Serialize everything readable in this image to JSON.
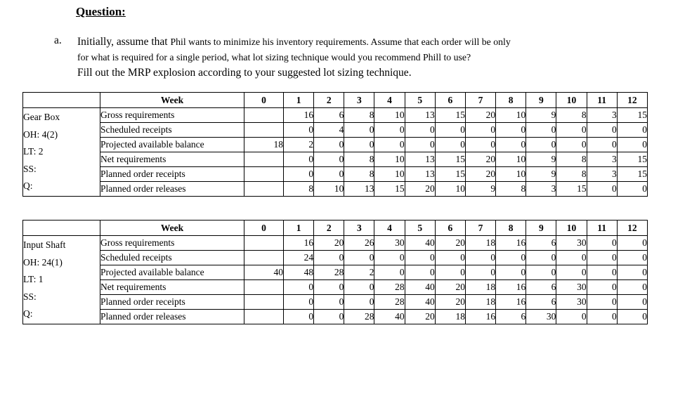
{
  "document": {
    "title": "Question:",
    "item": {
      "marker": "a.",
      "line1_lead": "Initially, assume that ",
      "line1_rest": "Phil wants to minimize his inventory requirements. Assume that each order will be only",
      "line2": "for what is required for a single period, what lot sizing technique would you recommend Phill to use?",
      "line3": "Fill out the MRP explosion according to your suggested lot sizing technique."
    }
  },
  "tables": [
    {
      "name": "gearbox",
      "item_info": [
        "Gear Box",
        "OH: 4(2)",
        "LT: 2",
        "SS:",
        "Q:"
      ],
      "header": {
        "week_label": "Week",
        "weeks": [
          "0",
          "1",
          "2",
          "3",
          "4",
          "5",
          "6",
          "7",
          "8",
          "9",
          "10",
          "11",
          "12"
        ]
      },
      "rows": [
        {
          "label": "Gross requirements",
          "values": [
            "",
            "16",
            "6",
            "8",
            "10",
            "13",
            "15",
            "20",
            "10",
            "9",
            "8",
            "3",
            "15"
          ]
        },
        {
          "label": "Scheduled receipts",
          "values": [
            "",
            "0",
            "4",
            "0",
            "0",
            "0",
            "0",
            "0",
            "0",
            "0",
            "0",
            "0",
            "0"
          ]
        },
        {
          "label": "Projected available balance",
          "values": [
            "18",
            "2",
            "0",
            "0",
            "0",
            "0",
            "0",
            "0",
            "0",
            "0",
            "0",
            "0",
            "0"
          ]
        },
        {
          "label": "Net requirements",
          "values": [
            "",
            "0",
            "0",
            "8",
            "10",
            "13",
            "15",
            "20",
            "10",
            "9",
            "8",
            "3",
            "15"
          ]
        },
        {
          "label": "Planned order receipts",
          "values": [
            "",
            "0",
            "0",
            "8",
            "10",
            "13",
            "15",
            "20",
            "10",
            "9",
            "8",
            "3",
            "15"
          ]
        },
        {
          "label": "Planned order releases",
          "values": [
            "",
            "8",
            "10",
            "13",
            "15",
            "20",
            "10",
            "9",
            "8",
            "3",
            "15",
            "0",
            "0"
          ]
        }
      ]
    },
    {
      "name": "inputshaft",
      "item_info": [
        "Input Shaft",
        "OH: 24(1)",
        "LT: 1",
        "SS:",
        "Q:"
      ],
      "header": {
        "week_label": "Week",
        "weeks": [
          "0",
          "1",
          "2",
          "3",
          "4",
          "5",
          "6",
          "7",
          "8",
          "9",
          "10",
          "11",
          "12"
        ]
      },
      "rows": [
        {
          "label": "Gross requirements",
          "values": [
            "",
            "16",
            "20",
            "26",
            "30",
            "40",
            "20",
            "18",
            "16",
            "6",
            "30",
            "0",
            "0"
          ]
        },
        {
          "label": "Scheduled receipts",
          "values": [
            "",
            "24",
            "0",
            "0",
            "0",
            "0",
            "0",
            "0",
            "0",
            "0",
            "0",
            "0",
            "0"
          ]
        },
        {
          "label": "Projected available balance",
          "values": [
            "40",
            "48",
            "28",
            "2",
            "0",
            "0",
            "0",
            "0",
            "0",
            "0",
            "0",
            "0",
            "0"
          ]
        },
        {
          "label": "Net requirements",
          "values": [
            "",
            "0",
            "0",
            "0",
            "28",
            "40",
            "20",
            "18",
            "16",
            "6",
            "30",
            "0",
            "0"
          ]
        },
        {
          "label": "Planned order receipts",
          "values": [
            "",
            "0",
            "0",
            "0",
            "28",
            "40",
            "20",
            "18",
            "16",
            "6",
            "30",
            "0",
            "0"
          ]
        },
        {
          "label": "Planned order releases",
          "values": [
            "",
            "0",
            "0",
            "28",
            "40",
            "20",
            "18",
            "16",
            "6",
            "30",
            "0",
            "0",
            "0"
          ]
        }
      ]
    }
  ]
}
